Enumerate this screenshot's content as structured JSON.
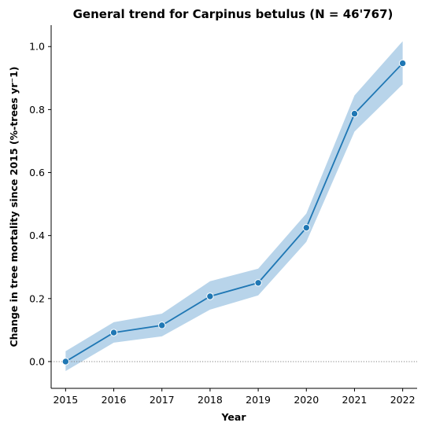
{
  "chart_data": {
    "type": "line",
    "title": "General trend for Carpinus betulus  (N = 46'767)",
    "xlabel": "Year",
    "ylabel": "Change in tree mortality since 2015 (%-trees yr⁻1)",
    "x": [
      2015,
      2016,
      2017,
      2018,
      2019,
      2020,
      2021,
      2022
    ],
    "series": [
      {
        "values": [
          0.0,
          0.092,
          0.115,
          0.207,
          0.25,
          0.425,
          0.787,
          0.947
        ],
        "ci_lower": [
          -0.03,
          0.06,
          0.08,
          0.165,
          0.21,
          0.38,
          0.73,
          0.88
        ],
        "ci_upper": [
          0.033,
          0.125,
          0.152,
          0.255,
          0.295,
          0.47,
          0.845,
          1.017
        ]
      }
    ],
    "xlim": [
      2014.7,
      2022.3
    ],
    "ylim": [
      -0.085,
      1.068
    ],
    "yticks": [
      "0.0",
      "0.2",
      "0.4",
      "0.6",
      "0.8",
      "1.0"
    ],
    "xticks": [
      "2015",
      "2016",
      "2017",
      "2018",
      "2019",
      "2020",
      "2021",
      "2022"
    ],
    "reference_line": 0.0,
    "grid": false,
    "colors": {
      "line": "#1f77b4",
      "band": "#b8d4ea",
      "reference": "#808080"
    }
  }
}
